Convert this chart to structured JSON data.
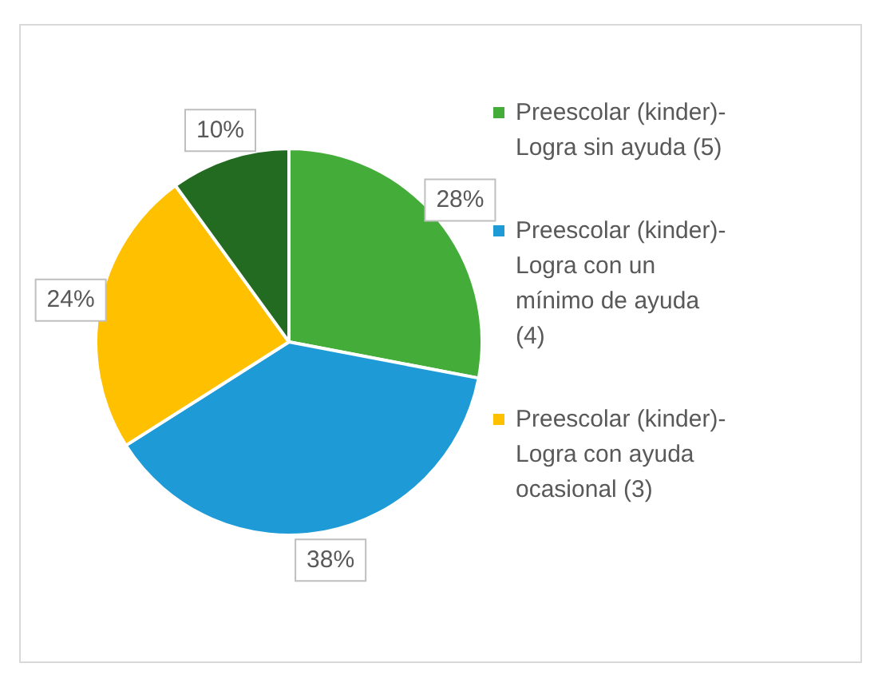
{
  "chart_data": {
    "type": "pie",
    "categories": [
      "Preescolar (kinder)-Logra sin ayuda (5)",
      "Preescolar (kinder)-Logra con un mínimo de ayuda (4)",
      "Preescolar (kinder)-Logra con ayuda ocasional (3)",
      null
    ],
    "values": [
      28,
      38,
      24,
      10
    ],
    "colors": [
      "#44ad3a",
      "#1e9bd7",
      "#ffc000",
      "#246b22"
    ],
    "value_labels": [
      "28%",
      "38%",
      "24%",
      "10%"
    ],
    "legend": "right"
  }
}
